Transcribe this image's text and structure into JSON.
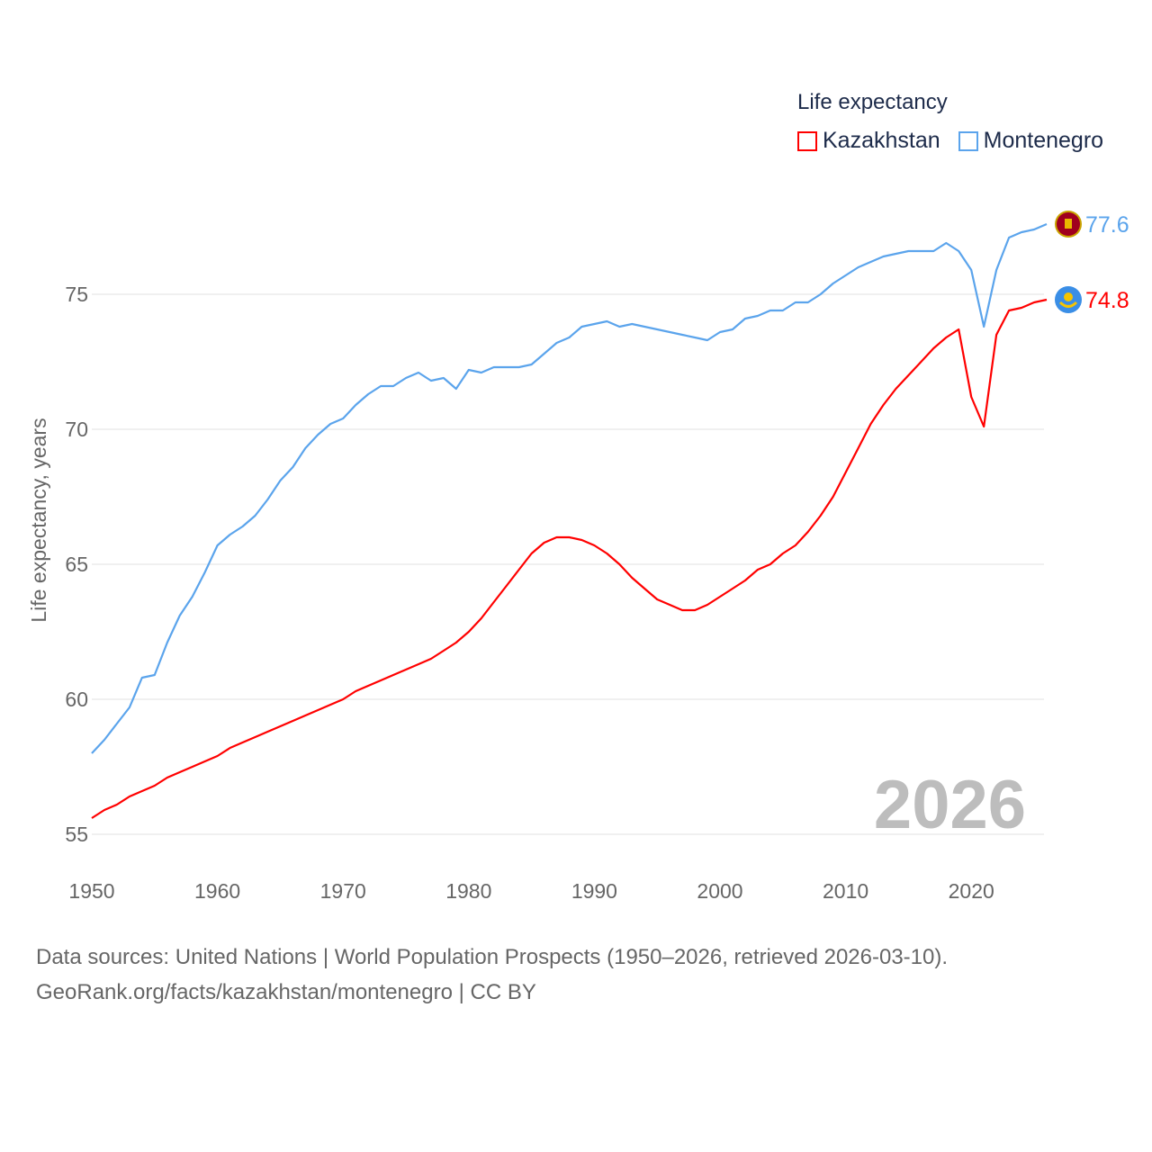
{
  "chart_data": {
    "type": "line",
    "title": "",
    "legend_title": "Life expectancy",
    "legend_position": "top-right",
    "ylabel": "Life expectancy, years",
    "xlabel": "",
    "xlim": [
      1950,
      2026
    ],
    "ylim": [
      54.5,
      79
    ],
    "x_ticks": [
      1950,
      1960,
      1970,
      1980,
      1990,
      2000,
      2010,
      2020
    ],
    "y_ticks": [
      55,
      60,
      65,
      70,
      75
    ],
    "grid": true,
    "year_watermark": "2026",
    "x": [
      1950,
      1951,
      1952,
      1953,
      1954,
      1955,
      1956,
      1957,
      1958,
      1959,
      1960,
      1961,
      1962,
      1963,
      1964,
      1965,
      1966,
      1967,
      1968,
      1969,
      1970,
      1971,
      1972,
      1973,
      1974,
      1975,
      1976,
      1977,
      1978,
      1979,
      1980,
      1981,
      1982,
      1983,
      1984,
      1985,
      1986,
      1987,
      1988,
      1989,
      1990,
      1991,
      1992,
      1993,
      1994,
      1995,
      1996,
      1997,
      1998,
      1999,
      2000,
      2001,
      2002,
      2003,
      2004,
      2005,
      2006,
      2007,
      2008,
      2009,
      2010,
      2011,
      2012,
      2013,
      2014,
      2015,
      2016,
      2017,
      2018,
      2019,
      2020,
      2021,
      2022,
      2023,
      2024,
      2025,
      2026
    ],
    "series": [
      {
        "name": "Kazakhstan",
        "color": "#ff0000",
        "end_label": "74.8",
        "flag": "kazakhstan-flag",
        "values": [
          55.6,
          55.9,
          56.1,
          56.4,
          56.6,
          56.8,
          57.1,
          57.3,
          57.5,
          57.7,
          57.9,
          58.2,
          58.4,
          58.6,
          58.8,
          59.0,
          59.2,
          59.4,
          59.6,
          59.8,
          60.0,
          60.3,
          60.5,
          60.7,
          60.9,
          61.1,
          61.3,
          61.5,
          61.8,
          62.1,
          62.5,
          63.0,
          63.6,
          64.2,
          64.8,
          65.4,
          65.8,
          66.0,
          66.0,
          65.9,
          65.7,
          65.4,
          65.0,
          64.5,
          64.1,
          63.7,
          63.5,
          63.3,
          63.3,
          63.5,
          63.8,
          64.1,
          64.4,
          64.8,
          65.0,
          65.4,
          65.7,
          66.2,
          66.8,
          67.5,
          68.4,
          69.3,
          70.2,
          70.9,
          71.5,
          72.0,
          72.5,
          73.0,
          73.4,
          73.7,
          71.2,
          70.1,
          73.5,
          74.4,
          74.5,
          74.7,
          74.8
        ]
      },
      {
        "name": "Montenegro",
        "color": "#5ba4ec",
        "end_label": "77.6",
        "flag": "montenegro-flag",
        "values": [
          58.0,
          58.5,
          59.1,
          59.7,
          60.8,
          60.9,
          62.1,
          63.1,
          63.8,
          64.7,
          65.7,
          66.1,
          66.4,
          66.8,
          67.4,
          68.1,
          68.6,
          69.3,
          69.8,
          70.2,
          70.4,
          70.9,
          71.3,
          71.6,
          71.6,
          71.9,
          72.1,
          71.8,
          71.9,
          71.5,
          72.2,
          72.1,
          72.3,
          72.3,
          72.3,
          72.4,
          72.8,
          73.2,
          73.4,
          73.8,
          73.9,
          74.0,
          73.8,
          73.9,
          73.8,
          73.7,
          73.6,
          73.5,
          73.4,
          73.3,
          73.6,
          73.7,
          74.1,
          74.2,
          74.4,
          74.4,
          74.7,
          74.7,
          75.0,
          75.4,
          75.7,
          76.0,
          76.2,
          76.4,
          76.5,
          76.6,
          76.6,
          76.6,
          76.9,
          76.6,
          75.9,
          73.8,
          75.9,
          77.1,
          77.3,
          77.4,
          77.6
        ]
      }
    ]
  },
  "source": {
    "line1": "Data sources: United Nations | World Population Prospects (1950–2026, retrieved 2026-03-10).",
    "line2": "GeoRank.org/facts/kazakhstan/montenegro | CC BY"
  }
}
